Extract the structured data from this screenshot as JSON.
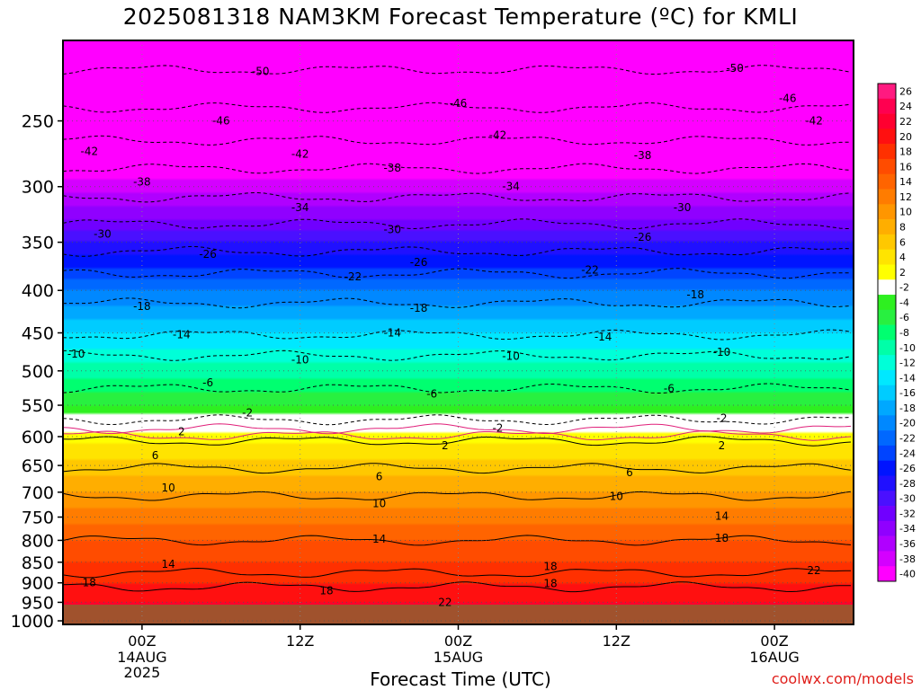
{
  "title": "2025081318 NAM3KM Forecast Temperature (ºC) for KMLI",
  "credit": "coolwx.com/models",
  "chart_data": {
    "type": "heatmap",
    "title": "2025081318 NAM3KM Forecast Temperature (ºC) for KMLI",
    "xlabel": "Forecast Time (UTC)",
    "ylabel": "",
    "x_ticks": [
      {
        "label": "00Z",
        "sub": [
          "14AUG",
          "2025"
        ],
        "hours": 6
      },
      {
        "label": "12Z",
        "sub": [],
        "hours": 18
      },
      {
        "label": "00Z",
        "sub": [
          "15AUG"
        ],
        "hours": 30
      },
      {
        "label": "12Z",
        "sub": [],
        "hours": 42
      },
      {
        "label": "00Z",
        "sub": [
          "16AUG"
        ],
        "hours": 54
      }
    ],
    "xlim_hours": [
      0,
      60
    ],
    "y_ticks": [
      250,
      300,
      350,
      400,
      450,
      500,
      550,
      600,
      650,
      700,
      750,
      800,
      850,
      900,
      950,
      1000
    ],
    "ylim_hpa": [
      200,
      1010
    ],
    "y_scale": "log-pressure",
    "grid": true,
    "temperature_profile": [
      {
        "p": 200,
        "t": -54
      },
      {
        "p": 250,
        "t": -45
      },
      {
        "p": 300,
        "t": -37
      },
      {
        "p": 350,
        "t": -28
      },
      {
        "p": 400,
        "t": -20
      },
      {
        "p": 450,
        "t": -14
      },
      {
        "p": 500,
        "t": -9
      },
      {
        "p": 550,
        "t": -4
      },
      {
        "p": 570,
        "t": -1
      },
      {
        "p": 600,
        "t": 3
      },
      {
        "p": 650,
        "t": 7
      },
      {
        "p": 700,
        "t": 10
      },
      {
        "p": 750,
        "t": 13
      },
      {
        "p": 800,
        "t": 16
      },
      {
        "p": 850,
        "t": 18
      },
      {
        "p": 900,
        "t": 20
      },
      {
        "p": 950,
        "t": 22
      },
      {
        "p": 1000,
        "t": 24
      }
    ],
    "ground_color": "#a0522d",
    "contour_labels": [
      {
        "text": "-50",
        "hours": 15,
        "p": 218
      },
      {
        "text": "-50",
        "hours": 51,
        "p": 216
      },
      {
        "text": "-46",
        "hours": 12,
        "p": 250
      },
      {
        "text": "-46",
        "hours": 30,
        "p": 238
      },
      {
        "text": "-46",
        "hours": 55,
        "p": 235
      },
      {
        "text": "-42",
        "hours": 2,
        "p": 272
      },
      {
        "text": "-42",
        "hours": 18,
        "p": 274
      },
      {
        "text": "-42",
        "hours": 33,
        "p": 260
      },
      {
        "text": "-42",
        "hours": 57,
        "p": 250
      },
      {
        "text": "-38",
        "hours": 6,
        "p": 296
      },
      {
        "text": "-38",
        "hours": 25,
        "p": 285
      },
      {
        "text": "-38",
        "hours": 44,
        "p": 275
      },
      {
        "text": "-34",
        "hours": 18,
        "p": 318
      },
      {
        "text": "-34",
        "hours": 34,
        "p": 300
      },
      {
        "text": "-30",
        "hours": 3,
        "p": 342
      },
      {
        "text": "-30",
        "hours": 25,
        "p": 338
      },
      {
        "text": "-30",
        "hours": 47,
        "p": 318
      },
      {
        "text": "-26",
        "hours": 11,
        "p": 362
      },
      {
        "text": "-26",
        "hours": 27,
        "p": 370
      },
      {
        "text": "-26",
        "hours": 44,
        "p": 345
      },
      {
        "text": "-22",
        "hours": 22,
        "p": 385
      },
      {
        "text": "-22",
        "hours": 40,
        "p": 378
      },
      {
        "text": "-18",
        "hours": 6,
        "p": 418
      },
      {
        "text": "-18",
        "hours": 27,
        "p": 420
      },
      {
        "text": "-18",
        "hours": 48,
        "p": 405
      },
      {
        "text": "-14",
        "hours": 9,
        "p": 452
      },
      {
        "text": "-14",
        "hours": 25,
        "p": 450
      },
      {
        "text": "-14",
        "hours": 41,
        "p": 455
      },
      {
        "text": "-10",
        "hours": 1,
        "p": 477
      },
      {
        "text": "-10",
        "hours": 18,
        "p": 485
      },
      {
        "text": "-10",
        "hours": 34,
        "p": 480
      },
      {
        "text": "-10",
        "hours": 50,
        "p": 475
      },
      {
        "text": "-6",
        "hours": 11,
        "p": 517
      },
      {
        "text": "-6",
        "hours": 28,
        "p": 533
      },
      {
        "text": "-6",
        "hours": 46,
        "p": 525
      },
      {
        "text": "-2",
        "hours": 14,
        "p": 562
      },
      {
        "text": "-2",
        "hours": 33,
        "p": 586
      },
      {
        "text": "-2",
        "hours": 50,
        "p": 570
      },
      {
        "text": "2",
        "hours": 9,
        "p": 592
      },
      {
        "text": "2",
        "hours": 29,
        "p": 615
      },
      {
        "text": "2",
        "hours": 50,
        "p": 615
      },
      {
        "text": "6",
        "hours": 7,
        "p": 632
      },
      {
        "text": "6",
        "hours": 24,
        "p": 670
      },
      {
        "text": "6",
        "hours": 43,
        "p": 663
      },
      {
        "text": "10",
        "hours": 8,
        "p": 692
      },
      {
        "text": "10",
        "hours": 24,
        "p": 722
      },
      {
        "text": "10",
        "hours": 42,
        "p": 708
      },
      {
        "text": "14",
        "hours": 24,
        "p": 797
      },
      {
        "text": "14",
        "hours": 8,
        "p": 855
      },
      {
        "text": "14",
        "hours": 50,
        "p": 748
      },
      {
        "text": "18",
        "hours": 2,
        "p": 900
      },
      {
        "text": "18",
        "hours": 20,
        "p": 920
      },
      {
        "text": "18",
        "hours": 37,
        "p": 902
      },
      {
        "text": "18",
        "hours": 37,
        "p": 860
      },
      {
        "text": "18",
        "hours": 50,
        "p": 795
      },
      {
        "text": "22",
        "hours": 29,
        "p": 950
      },
      {
        "text": "22",
        "hours": 57,
        "p": 870
      }
    ],
    "colorbar": {
      "labels": [
        "26",
        "24",
        "22",
        "20",
        "18",
        "16",
        "14",
        "12",
        "10",
        "8",
        "6",
        "4",
        "2",
        "-2",
        "-4",
        "-6",
        "-8",
        "-10",
        "-12",
        "-14",
        "-16",
        "-18",
        "-20",
        "-22",
        "-24",
        "-26",
        "-28",
        "-30",
        "-32",
        "-34",
        "-36",
        "-38",
        "-40"
      ],
      "colors": [
        "#ff1a80",
        "#ff0050",
        "#ff0030",
        "#ff1010",
        "#ff3000",
        "#ff4c00",
        "#ff6400",
        "#ff7c00",
        "#ff9600",
        "#ffae00",
        "#ffc800",
        "#ffe400",
        "#ffff00",
        "#ffffff",
        "#2ef020",
        "#28f040",
        "#00ff70",
        "#00ffa8",
        "#00ffd8",
        "#00e8ff",
        "#00ccff",
        "#00a8ff",
        "#0088ff",
        "#0068ff",
        "#0044ff",
        "#0014ff",
        "#2010ff",
        "#4a10ff",
        "#7000ff",
        "#9000ff",
        "#b000ff",
        "#d400ff",
        "#ff00ff"
      ]
    }
  }
}
